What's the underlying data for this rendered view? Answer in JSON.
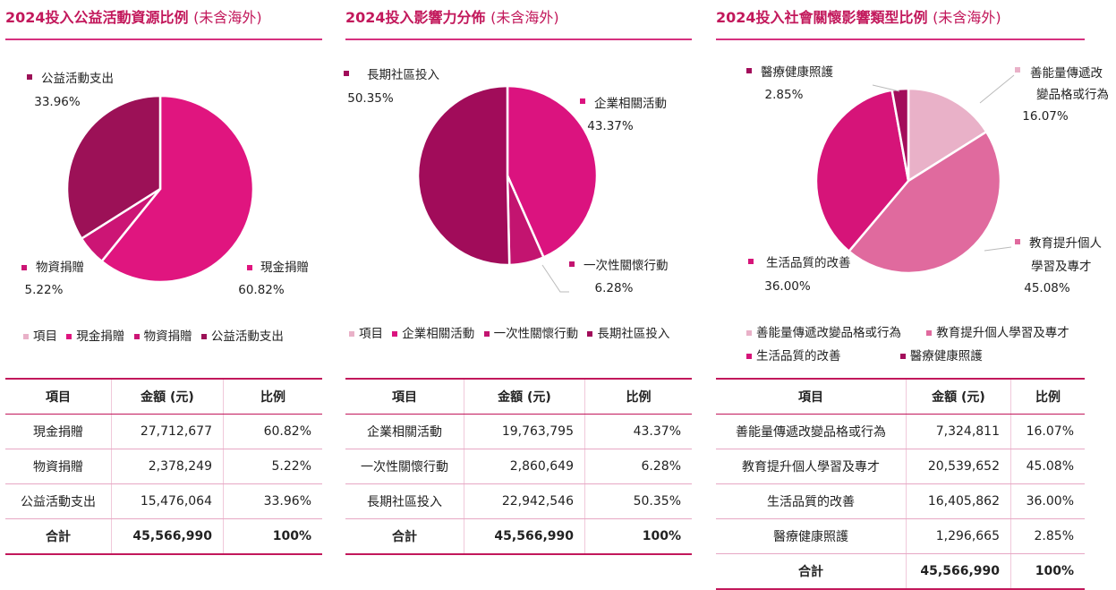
{
  "colors": {
    "accent": "#c2185b",
    "cash": "#e0157f",
    "goods": "#cc1575",
    "charity": "#9c1157",
    "enterprise": "#db137f",
    "oneoff": "#c31470",
    "longterm": "#a10c5a",
    "kindness": "#e9b1c8",
    "education": "#e06a9e",
    "life": "#d61479",
    "medical": "#a30d5b"
  },
  "panels": [
    {
      "title": "2024投入公益活動資源比例",
      "title_suffix": "(未含海外)",
      "legend": [
        "項目",
        "現金捐贈",
        "物資捐贈",
        "公益活動支出"
      ],
      "table": {
        "headers": [
          "項目",
          "金額 (元)",
          "比例"
        ],
        "rows": [
          [
            "現金捐贈",
            "27,712,677",
            "60.82%"
          ],
          [
            "物資捐贈",
            "2,378,249",
            "5.22%"
          ],
          [
            "公益活動支出",
            "15,476,064",
            "33.96%"
          ]
        ],
        "total": [
          "合計",
          "45,566,990",
          "100%"
        ]
      }
    },
    {
      "title": "2024投入影響力分佈",
      "title_suffix": "(未含海外)",
      "legend": [
        "項目",
        "企業相關活動",
        "一次性關懷行動",
        "長期社區投入"
      ],
      "table": {
        "headers": [
          "項目",
          "金額 (元)",
          "比例"
        ],
        "rows": [
          [
            "企業相關活動",
            "19,763,795",
            "43.37%"
          ],
          [
            "一次性關懷行動",
            "2,860,649",
            "6.28%"
          ],
          [
            "長期社區投入",
            "22,942,546",
            "50.35%"
          ]
        ],
        "total": [
          "合計",
          "45,566,990",
          "100%"
        ]
      }
    },
    {
      "title": "2024投入社會關懷影響類型比例",
      "title_suffix": "(未含海外)",
      "legend_row1": [
        "善能量傳遞改變品格或行為",
        "教育提升個人學習及專才"
      ],
      "legend_row2": [
        "生活品質的改善",
        "醫療健康照護"
      ],
      "table": {
        "headers": [
          "項目",
          "金額 (元)",
          "比例"
        ],
        "rows": [
          [
            "善能量傳遞改變品格或行為",
            "7,324,811",
            "16.07%"
          ],
          [
            "教育提升個人學習及專才",
            "20,539,652",
            "45.08%"
          ],
          [
            "生活品質的改善",
            "16,405,862",
            "36.00%"
          ],
          [
            "醫療健康照護",
            "1,296,665",
            "2.85%"
          ]
        ],
        "total": [
          "合計",
          "45,566,990",
          "100%"
        ]
      }
    }
  ],
  "chart_data": [
    {
      "type": "pie",
      "title": "2024投入公益活動資源比例 (未含海外)",
      "labels": [
        "現金捐贈",
        "物資捐贈",
        "公益活動支出"
      ],
      "values": [
        60.82,
        5.22,
        33.96
      ],
      "amounts": [
        27712677,
        2378249,
        15476064
      ],
      "slice_labels": [
        "60.82%",
        "5.22%",
        "33.96%"
      ],
      "colors": [
        "#e0157f",
        "#cc1575",
        "#9c1157"
      ]
    },
    {
      "type": "pie",
      "title": "2024投入影響力分佈 (未含海外)",
      "labels": [
        "企業相關活動",
        "一次性關懷行動",
        "長期社區投入"
      ],
      "values": [
        43.37,
        6.28,
        50.35
      ],
      "amounts": [
        19763795,
        2860649,
        22942546
      ],
      "slice_labels": [
        "43.37%",
        "6.28%",
        "50.35%"
      ],
      "colors": [
        "#db137f",
        "#c31470",
        "#a10c5a"
      ]
    },
    {
      "type": "pie",
      "title": "2024投入社會關懷影響類型比例 (未含海外)",
      "labels": [
        "善能量傳遞改變品格或行為",
        "教育提升個人學習及專才",
        "生活品質的改善",
        "醫療健康照護"
      ],
      "values": [
        16.07,
        45.08,
        36.0,
        2.85
      ],
      "amounts": [
        7324811,
        20539652,
        16405862,
        1296665
      ],
      "slice_labels": [
        "16.07%",
        "45.08%",
        "36.00%",
        "2.85%"
      ],
      "colors": [
        "#e9b1c8",
        "#e06a9e",
        "#d61479",
        "#a30d5b"
      ]
    }
  ]
}
